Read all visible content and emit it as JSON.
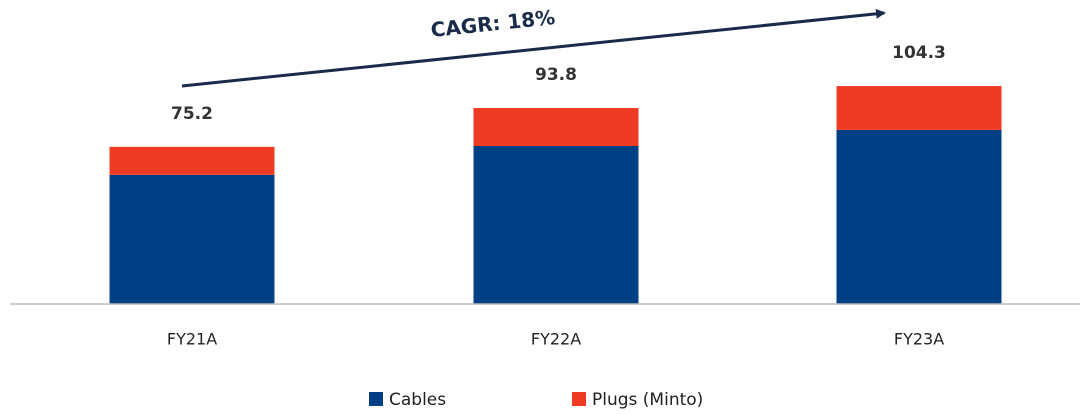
{
  "chart_data": {
    "type": "stacked_bar",
    "categories": [
      "FY21A",
      "FY22A",
      "FY23A"
    ],
    "series": [
      {
        "name": "Cables",
        "color": "#003f84",
        "values": [
          61.8,
          75.6,
          83.3
        ]
      },
      {
        "name": "Plugs (Minto)",
        "color": "#ef3b24",
        "values": [
          13.4,
          18.2,
          21.0
        ]
      }
    ],
    "totals": [
      75.2,
      93.8,
      104.3
    ],
    "ylim": [
      0,
      145
    ],
    "annotation": "CAGR: 18%"
  }
}
